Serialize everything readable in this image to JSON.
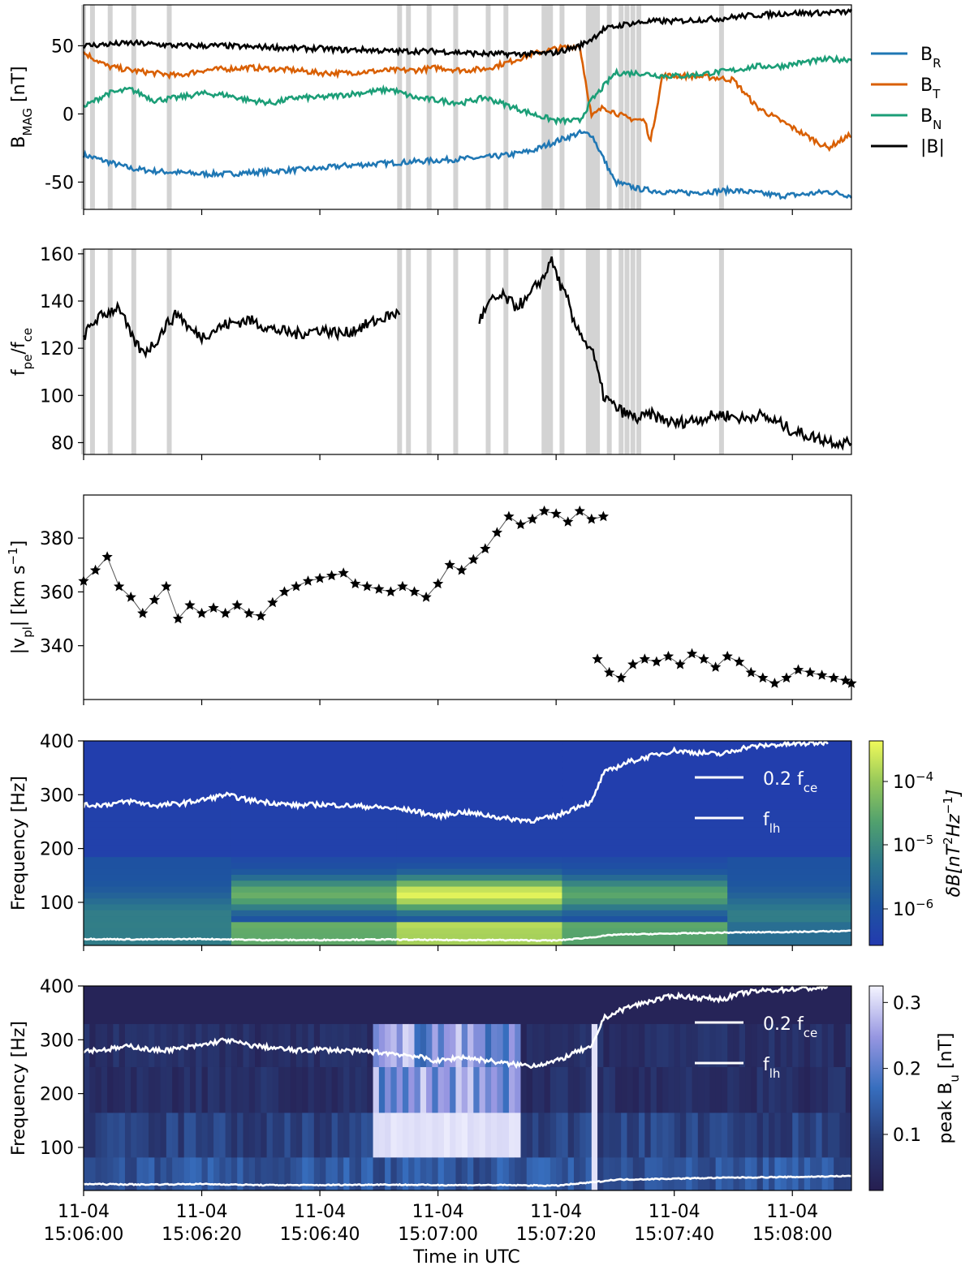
{
  "x_tick_labels": [
    {
      "date": "11-04",
      "time": "15:06:00"
    },
    {
      "date": "11-04",
      "time": "15:06:20"
    },
    {
      "date": "11-04",
      "time": "15:06:40"
    },
    {
      "date": "11-04",
      "time": "15:07:00"
    },
    {
      "date": "11-04",
      "time": "15:07:20"
    },
    {
      "date": "11-04",
      "time": "15:07:40"
    },
    {
      "date": "11-04",
      "time": "15:08:00"
    }
  ],
  "chart_data": [
    {
      "type": "line",
      "ylabel": "B_MAG [nT]",
      "xlabel": "",
      "x_range_seconds": [
        "15:06:00",
        "15:08:10"
      ],
      "ylim": [
        -70,
        80
      ],
      "yticks": [
        -50,
        0,
        50
      ],
      "legend": "outside-right",
      "series": [
        {
          "name": "B_R",
          "color": "#1f77b4",
          "t": [
            0,
            4,
            8,
            12,
            16,
            20,
            24,
            28,
            32,
            36,
            40,
            44,
            48,
            52,
            56,
            60,
            64,
            68,
            72,
            76,
            80,
            84,
            86,
            90,
            94,
            98,
            102,
            106,
            110,
            114,
            118,
            122,
            126,
            130
          ],
          "values": [
            -30,
            -35,
            -40,
            -42,
            -43,
            -44,
            -44,
            -43,
            -42,
            -41,
            -40,
            -38,
            -37,
            -36,
            -35,
            -34,
            -33,
            -32,
            -30,
            -27,
            -20,
            -14,
            -15,
            -50,
            -55,
            -57,
            -58,
            -57,
            -56,
            -58,
            -60,
            -59,
            -57,
            -60
          ]
        },
        {
          "name": "B_T",
          "color": "#d95f02",
          "t": [
            0,
            4,
            8,
            12,
            16,
            20,
            24,
            28,
            32,
            36,
            40,
            44,
            48,
            52,
            56,
            60,
            64,
            68,
            72,
            76,
            80,
            84,
            86,
            88,
            92,
            95,
            96,
            98,
            102,
            106,
            110,
            114,
            118,
            122,
            126,
            130
          ],
          "values": [
            45,
            35,
            32,
            30,
            28,
            32,
            33,
            34,
            33,
            32,
            30,
            30,
            31,
            32,
            32,
            34,
            32,
            33,
            38,
            44,
            48,
            50,
            -2,
            5,
            -3,
            -5,
            -20,
            28,
            28,
            27,
            25,
            5,
            -5,
            -15,
            -25,
            -15
          ]
        },
        {
          "name": "B_N",
          "color": "#1b9e77",
          "t": [
            0,
            4,
            8,
            12,
            16,
            20,
            24,
            28,
            32,
            36,
            40,
            44,
            48,
            52,
            56,
            60,
            64,
            68,
            72,
            76,
            80,
            84,
            86,
            90,
            94,
            98,
            102,
            106,
            110,
            114,
            118,
            122,
            126,
            130
          ],
          "values": [
            5,
            15,
            18,
            10,
            12,
            15,
            14,
            10,
            8,
            12,
            12,
            14,
            16,
            18,
            12,
            10,
            8,
            12,
            6,
            0,
            -5,
            -5,
            10,
            30,
            30,
            28,
            28,
            30,
            32,
            35,
            35,
            38,
            40,
            40
          ]
        },
        {
          "name": "|B|",
          "color": "#000000",
          "t": [
            0,
            4,
            8,
            12,
            16,
            20,
            24,
            28,
            32,
            36,
            40,
            44,
            48,
            52,
            56,
            60,
            64,
            68,
            72,
            76,
            80,
            84,
            86,
            88,
            92,
            96,
            100,
            104,
            108,
            112,
            116,
            120,
            124,
            130
          ],
          "values": [
            50,
            51,
            52,
            51,
            50,
            50,
            50,
            49,
            49,
            48,
            48,
            47,
            47,
            46,
            46,
            46,
            45,
            44,
            44,
            44,
            45,
            50,
            55,
            62,
            66,
            68,
            68,
            69,
            70,
            72,
            73,
            74,
            74,
            75
          ]
        }
      ],
      "shaded_times": [
        0,
        1.5,
        4.5,
        8.5,
        14.5,
        53.5,
        55,
        58.5,
        63,
        68.5,
        71.5,
        78.5,
        81,
        86,
        87,
        89,
        91,
        92,
        93,
        94,
        108
      ]
    },
    {
      "type": "line",
      "ylabel": "f_pe/f_ce",
      "xlabel": "",
      "ylim": [
        75,
        162
      ],
      "yticks": [
        80,
        100,
        120,
        140,
        160
      ],
      "series": [
        {
          "name": "",
          "color": "#000000",
          "segments": [
            {
              "t": [
                0,
                2,
                4,
                6,
                8,
                10,
                12,
                14,
                16,
                18,
                20,
                24,
                28,
                32,
                36,
                40,
                44,
                48,
                52,
                53.5
              ],
              "values": [
                125,
                132,
                135,
                138,
                125,
                118,
                122,
                130,
                135,
                128,
                125,
                130,
                132,
                128,
                126,
                128,
                126,
                130,
                134,
                135
              ]
            },
            {
              "t": [
                67,
                69,
                71,
                73,
                75,
                77,
                78,
                79,
                80,
                81,
                82,
                83,
                84,
                85,
                86,
                87,
                88,
                90,
                92,
                94,
                96,
                98,
                100,
                104,
                108,
                112,
                114,
                116,
                118,
                120,
                124,
                128,
                130
              ],
              "values": [
                132,
                140,
                142,
                138,
                140,
                148,
                150,
                158,
                152,
                145,
                140,
                130,
                128,
                122,
                120,
                110,
                100,
                95,
                92,
                90,
                92,
                90,
                88,
                90,
                92,
                90,
                92,
                90,
                88,
                85,
                82,
                80,
                80
              ]
            }
          ]
        }
      ],
      "shaded_times": [
        0,
        1.5,
        4.5,
        8.5,
        14.5,
        53.5,
        55,
        58.5,
        63,
        68.5,
        71.5,
        78.5,
        81,
        86,
        87,
        89,
        91,
        92,
        93,
        94,
        108
      ]
    },
    {
      "type": "scatter",
      "ylabel": "|v_pl| [km s^-1]",
      "xlabel": "",
      "ylim": [
        320,
        396
      ],
      "yticks": [
        340,
        360,
        380
      ],
      "series": [
        {
          "name": "",
          "color": "#000000",
          "marker": "star",
          "segments": [
            {
              "t": [
                0,
                2,
                4,
                6,
                8,
                10,
                12,
                14,
                16,
                18,
                20,
                22,
                24,
                26,
                28,
                30,
                32,
                34,
                36,
                38,
                40,
                42,
                44,
                46,
                48,
                50,
                52,
                54,
                56,
                58,
                60,
                62,
                64,
                66,
                68,
                70,
                72,
                74,
                76,
                78,
                80,
                82,
                84,
                86,
                88
              ],
              "values": [
                364,
                368,
                373,
                362,
                358,
                352,
                357,
                362,
                350,
                355,
                352,
                354,
                352,
                355,
                352,
                351,
                356,
                360,
                362,
                364,
                365,
                366,
                367,
                363,
                362,
                361,
                360,
                362,
                360,
                358,
                363,
                370,
                368,
                372,
                376,
                382,
                388,
                385,
                387,
                390,
                389,
                386,
                390,
                387,
                388
              ]
            },
            {
              "t": [
                87,
                89,
                91,
                93,
                95,
                97,
                99,
                101,
                103,
                105,
                107,
                109,
                111,
                113,
                115,
                117,
                119,
                121,
                123,
                125,
                127,
                129,
                130
              ],
              "values": [
                335,
                330,
                328,
                333,
                335,
                334,
                336,
                333,
                337,
                335,
                332,
                336,
                334,
                330,
                328,
                326,
                328,
                331,
                330,
                329,
                328,
                327,
                326
              ]
            }
          ]
        }
      ]
    },
    {
      "type": "heatmap",
      "ylabel": "Frequency [Hz]",
      "xlabel": "",
      "ylim": [
        20,
        400
      ],
      "yticks": [
        100,
        200,
        300,
        400
      ],
      "colorbar": {
        "label": "δB[nT^2Hz^-1]",
        "ticks": [
          "10^-6",
          "10^-5",
          "10^-4"
        ],
        "scale": "log"
      },
      "time_blocks": [
        {
          "t0": 0,
          "t1": 25,
          "peak": 0.25
        },
        {
          "t0": 25,
          "t1": 53,
          "peak": 0.65
        },
        {
          "t0": 53,
          "t1": 81,
          "peak": 1.0
        },
        {
          "t0": 81,
          "t1": 109,
          "peak": 0.6
        },
        {
          "t0": 109,
          "t1": 130,
          "peak": 0.1
        }
      ],
      "series": [
        {
          "name": "0.2 f_ce",
          "color": "#ffffff",
          "t": [
            0,
            4,
            8,
            12,
            16,
            20,
            24,
            28,
            32,
            36,
            40,
            44,
            48,
            52,
            56,
            60,
            64,
            68,
            72,
            76,
            80,
            84,
            86,
            88,
            92,
            96,
            100,
            104,
            108,
            112,
            116,
            120,
            124,
            126
          ],
          "values": [
            280,
            282,
            288,
            280,
            283,
            290,
            300,
            290,
            285,
            280,
            282,
            280,
            278,
            275,
            270,
            260,
            268,
            262,
            255,
            252,
            260,
            280,
            285,
            340,
            360,
            372,
            382,
            378,
            375,
            388,
            392,
            394,
            396,
            398
          ]
        },
        {
          "name": "f_lh",
          "color": "#ffffff",
          "t": [
            0,
            10,
            20,
            30,
            40,
            50,
            60,
            70,
            80,
            86,
            90,
            100,
            110,
            120,
            130
          ],
          "values": [
            32,
            31,
            32,
            30,
            30,
            31,
            30,
            30,
            29,
            35,
            40,
            42,
            44,
            45,
            47
          ]
        }
      ]
    },
    {
      "type": "heatmap",
      "ylabel": "Frequency [Hz]",
      "xlabel": "Time in UTC",
      "ylim": [
        20,
        400
      ],
      "yticks": [
        100,
        200,
        300,
        400
      ],
      "colorbar": {
        "label": "peak B_u [nT]",
        "ticks": [
          0.1,
          0.2,
          0.3
        ]
      },
      "freq_bands": [
        20,
        82,
        165,
        250,
        330,
        400
      ],
      "series": [
        {
          "name": "0.2 f_ce",
          "color": "#ffffff",
          "t": [
            0,
            4,
            8,
            12,
            16,
            20,
            24,
            28,
            32,
            36,
            40,
            44,
            48,
            52,
            56,
            60,
            64,
            68,
            72,
            76,
            80,
            84,
            86,
            88,
            92,
            96,
            100,
            104,
            108,
            112,
            116,
            120,
            124,
            126
          ],
          "values": [
            280,
            282,
            288,
            280,
            283,
            290,
            300,
            290,
            285,
            280,
            282,
            280,
            278,
            275,
            270,
            260,
            268,
            262,
            255,
            252,
            260,
            280,
            285,
            340,
            360,
            372,
            382,
            378,
            375,
            388,
            392,
            394,
            396,
            398
          ]
        },
        {
          "name": "f_lh",
          "color": "#ffffff",
          "t": [
            0,
            10,
            20,
            30,
            40,
            50,
            60,
            70,
            80,
            86,
            90,
            100,
            110,
            120,
            130
          ],
          "values": [
            32,
            31,
            32,
            30,
            30,
            31,
            30,
            30,
            29,
            35,
            40,
            42,
            44,
            45,
            47
          ]
        }
      ]
    }
  ]
}
